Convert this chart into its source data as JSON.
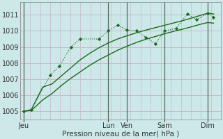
{
  "background_color": "#cce8e8",
  "grid_color_h": "#c8b8cc",
  "grid_color_v": "#c8b8cc",
  "line_color": "#1a6b1a",
  "title": "Pression niveau de la mer( hPa )",
  "ylim": [
    1004.5,
    1011.8
  ],
  "yticks": [
    1005,
    1006,
    1007,
    1008,
    1009,
    1010,
    1011
  ],
  "day_labels": [
    "Jeu",
    "Lun",
    "Ven",
    "Sam",
    "Dim"
  ],
  "day_positions": [
    0.0,
    4.5,
    5.5,
    7.5,
    9.8
  ],
  "vline_positions": [
    0.0,
    4.5,
    5.5,
    7.5,
    9.8
  ],
  "xlim": [
    -0.2,
    10.5
  ],
  "series1_x": [
    0.0,
    0.4,
    1.4,
    1.9,
    2.5,
    3.0,
    4.0,
    4.5,
    5.0,
    5.5,
    6.0,
    6.5,
    7.0,
    7.5,
    8.1,
    8.7,
    9.2,
    9.8,
    10.1
  ],
  "series1_y": [
    1005.0,
    1005.1,
    1007.25,
    1007.8,
    1009.0,
    1009.5,
    1009.5,
    1010.0,
    1010.35,
    1010.05,
    1010.0,
    1009.6,
    1009.2,
    1010.0,
    1010.15,
    1011.05,
    1010.7,
    1011.1,
    1010.85
  ],
  "series2_x": [
    0.0,
    0.4,
    1.0,
    1.5,
    2.0,
    2.5,
    3.0,
    3.5,
    4.0,
    4.5,
    5.0,
    5.5,
    6.0,
    6.5,
    7.0,
    7.5,
    8.0,
    8.5,
    9.0,
    9.5,
    9.8,
    10.1
  ],
  "series2_y": [
    1005.0,
    1005.1,
    1006.5,
    1006.7,
    1007.2,
    1007.7,
    1008.2,
    1008.6,
    1008.95,
    1009.25,
    1009.5,
    1009.7,
    1009.88,
    1010.05,
    1010.2,
    1010.35,
    1010.5,
    1010.65,
    1010.82,
    1011.0,
    1011.1,
    1011.05
  ],
  "series3_x": [
    0.0,
    0.4,
    1.0,
    1.5,
    2.0,
    2.5,
    3.0,
    3.5,
    4.0,
    4.5,
    5.0,
    5.5,
    6.0,
    6.5,
    7.0,
    7.5,
    8.0,
    8.5,
    9.0,
    9.5,
    9.8,
    10.1
  ],
  "series3_y": [
    1005.0,
    1005.05,
    1005.7,
    1006.1,
    1006.6,
    1007.05,
    1007.45,
    1007.85,
    1008.2,
    1008.5,
    1008.8,
    1009.05,
    1009.28,
    1009.48,
    1009.65,
    1009.82,
    1009.98,
    1010.12,
    1010.28,
    1010.44,
    1010.52,
    1010.48
  ],
  "title_fontsize": 7.5,
  "tick_fontsize": 7
}
